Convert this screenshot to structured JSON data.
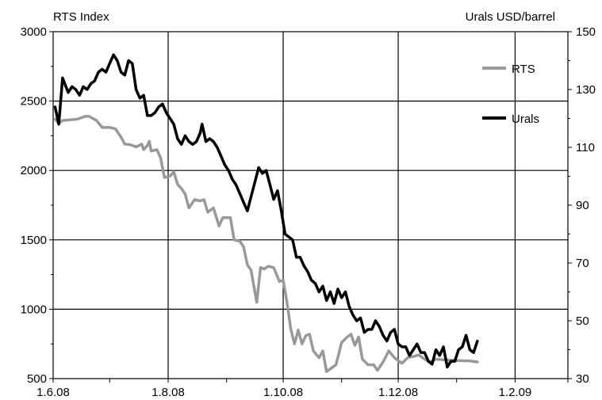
{
  "chart_data": {
    "type": "line",
    "left_axis_title": "RTS  Index",
    "right_axis_title": "Urals USD/barrel",
    "x_ticks": [
      "1.6.08",
      "1.8.08",
      "1.10.08",
      "1.12.08",
      "1.2.09"
    ],
    "left_ylim": [
      500,
      3000
    ],
    "left_yticks": [
      "500",
      "1000",
      "1500",
      "2000",
      "2500",
      "3000"
    ],
    "right_ylim": [
      30,
      150
    ],
    "right_yticks": [
      "30",
      "50",
      "70",
      "90",
      "110",
      "130",
      "150"
    ],
    "xlim": [
      "2008-06-01",
      "2009-03-01"
    ],
    "grid": true,
    "legend_position": "right, inside plot",
    "colors": {
      "RTS": "#999999",
      "Urals": "#000000"
    },
    "series": [
      {
        "name": "RTS",
        "axis": "left",
        "points": [
          [
            "2008-06-02",
            2370
          ],
          [
            "2008-06-04",
            2340
          ],
          [
            "2008-06-06",
            2360
          ],
          [
            "2008-06-10",
            2365
          ],
          [
            "2008-06-14",
            2370
          ],
          [
            "2008-06-18",
            2390
          ],
          [
            "2008-06-20",
            2390
          ],
          [
            "2008-06-24",
            2360
          ],
          [
            "2008-06-27",
            2310
          ],
          [
            "2008-07-01",
            2310
          ],
          [
            "2008-07-04",
            2300
          ],
          [
            "2008-07-07",
            2240
          ],
          [
            "2008-07-09",
            2190
          ],
          [
            "2008-07-12",
            2185
          ],
          [
            "2008-07-15",
            2170
          ],
          [
            "2008-07-18",
            2190
          ],
          [
            "2008-07-19",
            2150
          ],
          [
            "2008-07-21",
            2180
          ],
          [
            "2008-07-22",
            2210
          ],
          [
            "2008-07-23",
            2140
          ],
          [
            "2008-07-26",
            2150
          ],
          [
            "2008-07-28",
            2090
          ],
          [
            "2008-07-30",
            1950
          ],
          [
            "2008-08-02",
            1960
          ],
          [
            "2008-08-04",
            1990
          ],
          [
            "2008-08-06",
            1900
          ],
          [
            "2008-08-08",
            1870
          ],
          [
            "2008-08-10",
            1830
          ],
          [
            "2008-08-12",
            1730
          ],
          [
            "2008-08-15",
            1790
          ],
          [
            "2008-08-18",
            1780
          ],
          [
            "2008-08-20",
            1790
          ],
          [
            "2008-08-22",
            1700
          ],
          [
            "2008-08-25",
            1730
          ],
          [
            "2008-08-28",
            1600
          ],
          [
            "2008-08-30",
            1660
          ],
          [
            "2008-09-03",
            1660
          ],
          [
            "2008-09-05",
            1500
          ],
          [
            "2008-09-08",
            1490
          ],
          [
            "2008-09-10",
            1450
          ],
          [
            "2008-09-12",
            1320
          ],
          [
            "2008-09-14",
            1280
          ],
          [
            "2008-09-15",
            1200
          ],
          [
            "2008-09-17",
            1050
          ],
          [
            "2008-09-19",
            1300
          ],
          [
            "2008-09-21",
            1290
          ],
          [
            "2008-09-23",
            1310
          ],
          [
            "2008-09-26",
            1300
          ],
          [
            "2008-09-29",
            1200
          ],
          [
            "2008-10-01",
            1210
          ],
          [
            "2008-10-03",
            1050
          ],
          [
            "2008-10-05",
            860
          ],
          [
            "2008-10-07",
            750
          ],
          [
            "2008-10-09",
            850
          ],
          [
            "2008-10-11",
            750
          ],
          [
            "2008-10-13",
            810
          ],
          [
            "2008-10-15",
            820
          ],
          [
            "2008-10-17",
            700
          ],
          [
            "2008-10-20",
            650
          ],
          [
            "2008-10-22",
            700
          ],
          [
            "2008-10-24",
            550
          ],
          [
            "2008-10-27",
            580
          ],
          [
            "2008-10-29",
            600
          ],
          [
            "2008-11-01",
            760
          ],
          [
            "2008-11-04",
            800
          ],
          [
            "2008-11-06",
            820
          ],
          [
            "2008-11-08",
            740
          ],
          [
            "2008-11-10",
            800
          ],
          [
            "2008-11-12",
            640
          ],
          [
            "2008-11-15",
            600
          ],
          [
            "2008-11-18",
            600
          ],
          [
            "2008-11-20",
            560
          ],
          [
            "2008-11-23",
            620
          ],
          [
            "2008-11-26",
            700
          ],
          [
            "2008-11-29",
            650
          ],
          [
            "2008-12-03",
            610
          ],
          [
            "2008-12-06",
            650
          ],
          [
            "2008-12-09",
            660
          ],
          [
            "2008-12-12",
            670
          ],
          [
            "2008-12-15",
            640
          ],
          [
            "2008-12-18",
            620
          ],
          [
            "2008-12-21",
            640
          ],
          [
            "2008-12-25",
            635
          ],
          [
            "2009-01-01",
            630
          ],
          [
            "2009-01-08",
            628
          ],
          [
            "2009-01-12",
            620
          ]
        ]
      },
      {
        "name": "Urals",
        "axis": "right",
        "points": [
          [
            "2008-06-02",
            124
          ],
          [
            "2008-06-04",
            118
          ],
          [
            "2008-06-06",
            134
          ],
          [
            "2008-06-09",
            129
          ],
          [
            "2008-06-11",
            131
          ],
          [
            "2008-06-13",
            130
          ],
          [
            "2008-06-15",
            128
          ],
          [
            "2008-06-17",
            131
          ],
          [
            "2008-06-19",
            130
          ],
          [
            "2008-06-21",
            132
          ],
          [
            "2008-06-23",
            133
          ],
          [
            "2008-06-25",
            136
          ],
          [
            "2008-06-27",
            137
          ],
          [
            "2008-06-29",
            136
          ],
          [
            "2008-07-01",
            139
          ],
          [
            "2008-07-03",
            142
          ],
          [
            "2008-07-05",
            140
          ],
          [
            "2008-07-07",
            136
          ],
          [
            "2008-07-09",
            135
          ],
          [
            "2008-07-11",
            140
          ],
          [
            "2008-07-13",
            139
          ],
          [
            "2008-07-15",
            130
          ],
          [
            "2008-07-17",
            127
          ],
          [
            "2008-07-19",
            128
          ],
          [
            "2008-07-21",
            121
          ],
          [
            "2008-07-23",
            121
          ],
          [
            "2008-07-25",
            122
          ],
          [
            "2008-07-27",
            124
          ],
          [
            "2008-07-29",
            125
          ],
          [
            "2008-07-31",
            122
          ],
          [
            "2008-08-02",
            120
          ],
          [
            "2008-08-04",
            118
          ],
          [
            "2008-08-06",
            113
          ],
          [
            "2008-08-08",
            111
          ],
          [
            "2008-08-10",
            114
          ],
          [
            "2008-08-12",
            112
          ],
          [
            "2008-08-14",
            111
          ],
          [
            "2008-08-16",
            112
          ],
          [
            "2008-08-18",
            115
          ],
          [
            "2008-08-19",
            118
          ],
          [
            "2008-08-21",
            112
          ],
          [
            "2008-08-23",
            113
          ],
          [
            "2008-08-25",
            112
          ],
          [
            "2008-08-27",
            110
          ],
          [
            "2008-08-29",
            107
          ],
          [
            "2008-08-31",
            104
          ],
          [
            "2008-09-02",
            102
          ],
          [
            "2008-09-04",
            99
          ],
          [
            "2008-09-06",
            97
          ],
          [
            "2008-09-08",
            94
          ],
          [
            "2008-09-10",
            91
          ],
          [
            "2008-09-12",
            88
          ],
          [
            "2008-09-14",
            93
          ],
          [
            "2008-09-16",
            98
          ],
          [
            "2008-09-18",
            103
          ],
          [
            "2008-09-20",
            101
          ],
          [
            "2008-09-22",
            102
          ],
          [
            "2008-09-24",
            97
          ],
          [
            "2008-09-26",
            92
          ],
          [
            "2008-09-28",
            95
          ],
          [
            "2008-09-30",
            88
          ],
          [
            "2008-10-02",
            80
          ],
          [
            "2008-10-04",
            79
          ],
          [
            "2008-10-06",
            78
          ],
          [
            "2008-10-08",
            72
          ],
          [
            "2008-10-10",
            72
          ],
          [
            "2008-10-12",
            69
          ],
          [
            "2008-10-14",
            67
          ],
          [
            "2008-10-16",
            64
          ],
          [
            "2008-10-18",
            63
          ],
          [
            "2008-10-20",
            60
          ],
          [
            "2008-10-22",
            62
          ],
          [
            "2008-10-24",
            57
          ],
          [
            "2008-10-26",
            60
          ],
          [
            "2008-10-28",
            56
          ],
          [
            "2008-10-30",
            61
          ],
          [
            "2008-11-01",
            58
          ],
          [
            "2008-11-03",
            60
          ],
          [
            "2008-11-05",
            55
          ],
          [
            "2008-11-07",
            52
          ],
          [
            "2008-11-09",
            50
          ],
          [
            "2008-11-11",
            51
          ],
          [
            "2008-11-13",
            46
          ],
          [
            "2008-11-15",
            47
          ],
          [
            "2008-11-17",
            47
          ],
          [
            "2008-11-19",
            50
          ],
          [
            "2008-11-21",
            48
          ],
          [
            "2008-11-23",
            45
          ],
          [
            "2008-11-25",
            43
          ],
          [
            "2008-11-27",
            46
          ],
          [
            "2008-11-29",
            47
          ],
          [
            "2008-12-01",
            42
          ],
          [
            "2008-12-03",
            41
          ],
          [
            "2008-12-05",
            41
          ],
          [
            "2008-12-07",
            38
          ],
          [
            "2008-12-09",
            40
          ],
          [
            "2008-12-11",
            42
          ],
          [
            "2008-12-13",
            39
          ],
          [
            "2008-12-15",
            39
          ],
          [
            "2008-12-17",
            36
          ],
          [
            "2008-12-19",
            35
          ],
          [
            "2008-12-21",
            40
          ],
          [
            "2008-12-23",
            38
          ],
          [
            "2008-12-25",
            41
          ],
          [
            "2008-12-27",
            34
          ],
          [
            "2008-12-29",
            36
          ],
          [
            "2008-12-31",
            36
          ],
          [
            "2009-01-02",
            40
          ],
          [
            "2009-01-04",
            41
          ],
          [
            "2009-01-06",
            45
          ],
          [
            "2009-01-08",
            40
          ],
          [
            "2009-01-10",
            39
          ],
          [
            "2009-01-12",
            43
          ]
        ]
      }
    ]
  }
}
